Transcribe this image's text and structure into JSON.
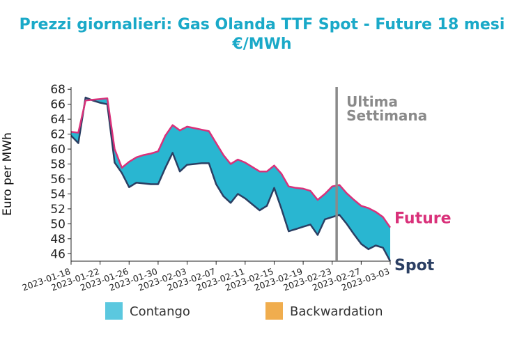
{
  "chart_data": {
    "type": "area",
    "title": "Prezzi giornalieri: Gas Olanda TTF Spot - Future 18 mesi",
    "subtitle": "€/MWh",
    "ylabel": "Euro per MWh",
    "xlabel": "",
    "ylim": [
      45,
      68.3
    ],
    "yticks": [
      46,
      48,
      50,
      52,
      54,
      56,
      58,
      60,
      62,
      64,
      66,
      68
    ],
    "xticks": [
      "2023-01-18",
      "2023-01-22",
      "2023-01-26",
      "2023-01-30",
      "2023-02-03",
      "2023-02-07",
      "2023-02-11",
      "2023-02-15",
      "2023-02-19",
      "2023-02-23",
      "2023-02-27",
      "2023-03-03"
    ],
    "x_range": [
      "2023-01-18",
      "2023-03-03"
    ],
    "annotation": {
      "text_line1": "Ultima",
      "text_line2": "Settimana",
      "x": "2023-02-24"
    },
    "end_labels": {
      "future": "Future",
      "spot": "Spot"
    },
    "legend": {
      "contango": "Contango",
      "backwardation": "Backwardation",
      "placement": "bottom"
    },
    "colors": {
      "future": "#d9317a",
      "spot": "#2b3f63",
      "contango": "#29b6d1",
      "backwardation": "#f0ad4e",
      "annotation": "#8a8a8a",
      "title": "#1aa9c8"
    },
    "series": [
      {
        "name": "Future",
        "x": [
          "2023-01-18",
          "2023-01-19",
          "2023-01-20",
          "2023-01-21",
          "2023-01-22",
          "2023-01-23",
          "2023-01-24",
          "2023-01-25",
          "2023-01-26",
          "2023-01-27",
          "2023-01-28",
          "2023-01-29",
          "2023-01-30",
          "2023-01-31",
          "2023-02-01",
          "2023-02-02",
          "2023-02-03",
          "2023-02-04",
          "2023-02-05",
          "2023-02-06",
          "2023-02-07",
          "2023-02-08",
          "2023-02-09",
          "2023-02-10",
          "2023-02-11",
          "2023-02-12",
          "2023-02-13",
          "2023-02-14",
          "2023-02-15",
          "2023-02-16",
          "2023-02-17",
          "2023-02-18",
          "2023-02-19",
          "2023-02-20",
          "2023-02-21",
          "2023-02-22",
          "2023-02-23",
          "2023-02-24",
          "2023-02-25",
          "2023-02-26",
          "2023-02-27",
          "2023-02-28",
          "2023-03-01",
          "2023-03-02",
          "2023-03-03"
        ],
        "values": [
          62.3,
          62.2,
          66.5,
          66.6,
          66.7,
          66.8,
          60.0,
          57.5,
          58.3,
          58.9,
          59.2,
          59.4,
          59.7,
          61.8,
          63.2,
          62.5,
          63.0,
          62.8,
          62.6,
          62.4,
          60.8,
          59.2,
          58.0,
          58.6,
          58.2,
          57.6,
          57.0,
          57.0,
          57.8,
          56.7,
          55.0,
          54.8,
          54.7,
          54.4,
          53.2,
          54.0,
          55.0,
          55.2,
          54.1,
          53.2,
          52.4,
          52.1,
          51.6,
          50.9,
          49.5
        ]
      },
      {
        "name": "Spot",
        "x": [
          "2023-01-18",
          "2023-01-19",
          "2023-01-20",
          "2023-01-21",
          "2023-01-22",
          "2023-01-23",
          "2023-01-24",
          "2023-01-25",
          "2023-01-26",
          "2023-01-27",
          "2023-01-28",
          "2023-01-29",
          "2023-01-30",
          "2023-01-31",
          "2023-02-01",
          "2023-02-02",
          "2023-02-03",
          "2023-02-04",
          "2023-02-05",
          "2023-02-06",
          "2023-02-07",
          "2023-02-08",
          "2023-02-09",
          "2023-02-10",
          "2023-02-11",
          "2023-02-12",
          "2023-02-13",
          "2023-02-14",
          "2023-02-15",
          "2023-02-16",
          "2023-02-17",
          "2023-02-18",
          "2023-02-19",
          "2023-02-20",
          "2023-02-21",
          "2023-02-22",
          "2023-02-23",
          "2023-02-24",
          "2023-02-25",
          "2023-02-26",
          "2023-02-27",
          "2023-02-28",
          "2023-03-01",
          "2023-03-02",
          "2023-03-03"
        ],
        "values": [
          61.8,
          60.8,
          66.9,
          66.5,
          66.2,
          66.0,
          58.2,
          56.8,
          54.9,
          55.5,
          55.4,
          55.3,
          55.3,
          57.5,
          59.5,
          57.0,
          57.9,
          58.0,
          58.1,
          58.1,
          55.3,
          53.7,
          52.8,
          54.0,
          53.4,
          52.6,
          51.8,
          52.4,
          54.8,
          52.0,
          49.0,
          49.3,
          49.6,
          49.9,
          48.5,
          50.6,
          50.9,
          51.2,
          50.0,
          48.6,
          47.3,
          46.6,
          47.1,
          46.8,
          45.0
        ]
      }
    ]
  }
}
